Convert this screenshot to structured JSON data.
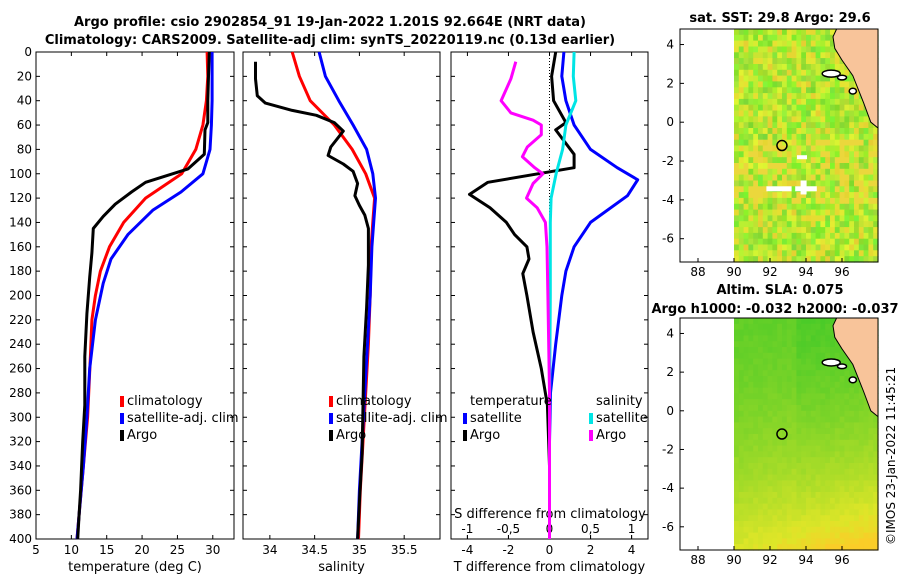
{
  "title_line1": "Argo profile: csio 2902854_91 19-Jan-2022 1.201S 92.664E (NRT data)",
  "title_line2": "Climatology: CARS2009. Satellite-adj clim: synTS_20220119.nc (0.13d earlier)",
  "timestamp_label": "©IMOS 23-Jan-2022 11:45:21",
  "colors": {
    "climatology": "#ff0000",
    "satellite": "#0000ff",
    "argo": "#000000",
    "sal_satellite": "#00e5e5",
    "sal_argo": "#ff00ff"
  },
  "depth_axis": {
    "ticks": [
      0,
      20,
      40,
      60,
      80,
      100,
      120,
      140,
      160,
      180,
      200,
      220,
      240,
      260,
      280,
      300,
      320,
      340,
      360,
      380,
      400
    ],
    "range": [
      0,
      400
    ]
  },
  "chart_data": [
    {
      "type": "line",
      "id": "temperature",
      "xlabel": "temperature (deg C)",
      "ylabel": "",
      "xlim": [
        5,
        33
      ],
      "ylim": [
        0,
        400
      ],
      "xticks": [
        5,
        10,
        15,
        20,
        25,
        30
      ],
      "legend": [
        "climatology",
        "satellite-adj. clim",
        "Argo"
      ],
      "series": [
        {
          "name": "climatology",
          "color": "#ff0000",
          "points": [
            [
              29.2,
              0
            ],
            [
              29.3,
              20
            ],
            [
              29.1,
              40
            ],
            [
              28.6,
              60
            ],
            [
              27.6,
              80
            ],
            [
              25.6,
              100
            ],
            [
              20.5,
              120
            ],
            [
              17.4,
              140
            ],
            [
              15.4,
              160
            ],
            [
              14.1,
              180
            ],
            [
              13.4,
              200
            ],
            [
              12.9,
              220
            ],
            [
              12.7,
              250
            ],
            [
              12.3,
              300
            ],
            [
              11.7,
              340
            ],
            [
              11.1,
              380
            ],
            [
              10.8,
              400
            ]
          ]
        },
        {
          "name": "satellite-adj. clim",
          "color": "#0000ff",
          "points": [
            [
              29.9,
              0
            ],
            [
              29.9,
              20
            ],
            [
              29.9,
              40
            ],
            [
              29.8,
              60
            ],
            [
              29.6,
              80
            ],
            [
              28.6,
              100
            ],
            [
              25.5,
              115
            ],
            [
              21.5,
              130
            ],
            [
              18.0,
              150
            ],
            [
              15.6,
              170
            ],
            [
              14.5,
              190
            ],
            [
              13.4,
              220
            ],
            [
              12.6,
              260
            ],
            [
              12.2,
              300
            ],
            [
              11.7,
              340
            ],
            [
              11.1,
              380
            ],
            [
              10.8,
              400
            ]
          ]
        },
        {
          "name": "Argo",
          "color": "#000000",
          "points": [
            [
              29.5,
              0
            ],
            [
              29.4,
              20
            ],
            [
              29.3,
              40
            ],
            [
              29.3,
              58
            ],
            [
              28.9,
              64
            ],
            [
              28.8,
              84
            ],
            [
              26.5,
              96
            ],
            [
              20.5,
              107
            ],
            [
              18.5,
              115
            ],
            [
              16.2,
              125
            ],
            [
              14.5,
              135
            ],
            [
              13.1,
              145
            ],
            [
              12.9,
              165
            ],
            [
              12.6,
              185
            ],
            [
              12.2,
              215
            ],
            [
              11.9,
              250
            ],
            [
              11.9,
              290
            ],
            [
              11.6,
              320
            ],
            [
              11.3,
              360
            ],
            [
              11.1,
              380
            ],
            [
              10.9,
              400
            ]
          ]
        }
      ]
    },
    {
      "type": "line",
      "id": "salinity",
      "xlabel": "salinity",
      "ylabel": "",
      "xlim": [
        33.7,
        35.9
      ],
      "ylim": [
        0,
        400
      ],
      "xticks": [
        34,
        34.5,
        35,
        35.5
      ],
      "xticklabels": [
        "34",
        "34.5",
        "35",
        "35.5"
      ],
      "legend": [
        "climatology",
        "satellite-adj. clim",
        "Argo"
      ],
      "series": [
        {
          "name": "climatology",
          "color": "#ff0000",
          "points": [
            [
              34.25,
              0
            ],
            [
              34.33,
              20
            ],
            [
              34.45,
              40
            ],
            [
              34.72,
              60
            ],
            [
              34.92,
              80
            ],
            [
              35.07,
              100
            ],
            [
              35.17,
              120
            ],
            [
              35.15,
              140
            ],
            [
              35.13,
              160
            ],
            [
              35.12,
              200
            ],
            [
              35.1,
              240
            ],
            [
              35.07,
              280
            ],
            [
              35.04,
              320
            ],
            [
              35.01,
              360
            ],
            [
              34.99,
              400
            ]
          ]
        },
        {
          "name": "satellite-adj. clim",
          "color": "#0000ff",
          "points": [
            [
              34.55,
              0
            ],
            [
              34.62,
              20
            ],
            [
              34.77,
              40
            ],
            [
              34.93,
              60
            ],
            [
              35.08,
              80
            ],
            [
              35.15,
              100
            ],
            [
              35.18,
              120
            ],
            [
              35.16,
              140
            ],
            [
              35.14,
              160
            ],
            [
              35.12,
              200
            ],
            [
              35.09,
              240
            ],
            [
              35.06,
              280
            ],
            [
              35.03,
              320
            ],
            [
              35.0,
              360
            ],
            [
              34.98,
              400
            ]
          ]
        },
        {
          "name": "Argo",
          "color": "#000000",
          "points": [
            [
              33.84,
              8
            ],
            [
              33.84,
              22
            ],
            [
              33.86,
              36
            ],
            [
              33.95,
              42
            ],
            [
              34.25,
              48
            ],
            [
              34.52,
              52
            ],
            [
              34.72,
              58
            ],
            [
              34.82,
              65
            ],
            [
              34.68,
              78
            ],
            [
              34.65,
              85
            ],
            [
              34.82,
              92
            ],
            [
              34.93,
              98
            ],
            [
              34.98,
              108
            ],
            [
              34.95,
              118
            ],
            [
              35.0,
              126
            ],
            [
              35.06,
              134
            ],
            [
              35.1,
              145
            ],
            [
              35.1,
              175
            ],
            [
              35.08,
              210
            ],
            [
              35.05,
              250
            ],
            [
              35.04,
              290
            ],
            [
              35.03,
              330
            ],
            [
              35.0,
              370
            ],
            [
              34.98,
              400
            ]
          ]
        }
      ]
    },
    {
      "type": "line",
      "id": "difference",
      "xlabel": "T difference from climatology",
      "x2label": "S difference from climatology",
      "xlim": [
        -4.8,
        4.8
      ],
      "ylim": [
        0,
        400
      ],
      "xticks": [
        -4,
        -2,
        0,
        2,
        4
      ],
      "x2lim": [
        -1.2,
        1.2
      ],
      "x2ticks": [
        -1,
        -0.5,
        0,
        0.5,
        1
      ],
      "x2ticklabels": [
        "-1",
        "-0,5",
        "0",
        "0,5",
        "1"
      ],
      "legend": [
        "temperature",
        "satellite",
        "Argo",
        "salinity",
        "satellite",
        "Argo"
      ],
      "series": [
        {
          "name": "T satellite",
          "color": "#0000ff",
          "axis": "T",
          "points": [
            [
              0.7,
              0
            ],
            [
              0.6,
              20
            ],
            [
              0.8,
              40
            ],
            [
              1.2,
              60
            ],
            [
              2.0,
              80
            ],
            [
              3.3,
              95
            ],
            [
              4.3,
              105
            ],
            [
              3.8,
              118
            ],
            [
              2.0,
              140
            ],
            [
              1.2,
              160
            ],
            [
              0.8,
              180
            ],
            [
              0.6,
              200
            ],
            [
              0.3,
              240
            ],
            [
              0.05,
              280
            ],
            [
              0,
              320
            ],
            [
              0,
              360
            ],
            [
              0,
              400
            ]
          ]
        },
        {
          "name": "T Argo",
          "color": "#000000",
          "axis": "T",
          "points": [
            [
              0.3,
              0
            ],
            [
              0.1,
              20
            ],
            [
              0.2,
              40
            ],
            [
              0.8,
              58
            ],
            [
              0.3,
              64
            ],
            [
              1.2,
              84
            ],
            [
              1.2,
              95
            ],
            [
              -3.0,
              107
            ],
            [
              -3.9,
              117
            ],
            [
              -2.9,
              128
            ],
            [
              -2.1,
              140
            ],
            [
              -1.7,
              150
            ],
            [
              -1.1,
              160
            ],
            [
              -1.0,
              170
            ],
            [
              -1.3,
              182
            ],
            [
              -1.1,
              200
            ],
            [
              -0.8,
              230
            ],
            [
              -0.4,
              260
            ],
            [
              -0.1,
              290
            ],
            [
              0,
              340
            ],
            [
              0,
              400
            ]
          ]
        },
        {
          "name": "S satellite",
          "color": "#00e5e5",
          "axis": "S",
          "points": [
            [
              0.3,
              0
            ],
            [
              0.29,
              20
            ],
            [
              0.32,
              40
            ],
            [
              0.2,
              60
            ],
            [
              0.16,
              80
            ],
            [
              0.08,
              100
            ],
            [
              0.02,
              120
            ],
            [
              0.01,
              140
            ],
            [
              0.01,
              200
            ],
            [
              0.0,
              300
            ],
            [
              0.0,
              400
            ]
          ]
        },
        {
          "name": "S Argo",
          "color": "#ff00ff",
          "axis": "S",
          "points": [
            [
              -0.41,
              8
            ],
            [
              -0.47,
              22
            ],
            [
              -0.59,
              40
            ],
            [
              -0.47,
              50
            ],
            [
              -0.2,
              56
            ],
            [
              -0.1,
              60
            ],
            [
              -0.1,
              68
            ],
            [
              -0.27,
              78
            ],
            [
              -0.33,
              86
            ],
            [
              -0.18,
              95
            ],
            [
              -0.08,
              100
            ],
            [
              -0.2,
              108
            ],
            [
              -0.28,
              120
            ],
            [
              -0.15,
              128
            ],
            [
              -0.05,
              140
            ],
            [
              -0.03,
              160
            ],
            [
              -0.02,
              200
            ],
            [
              0.0,
              280
            ],
            [
              0.0,
              400
            ]
          ]
        }
      ]
    },
    {
      "type": "heatmap",
      "id": "sst_map",
      "title": "sat. SST: 29.8 Argo: 29.6",
      "xlim": [
        87,
        98
      ],
      "ylim": [
        -7.2,
        4.8
      ],
      "xticks": [
        88,
        90,
        92,
        94,
        96
      ],
      "yticks": [
        -6,
        -4,
        -2,
        0,
        2,
        4
      ],
      "argo_position": [
        92.664,
        -1.201
      ]
    },
    {
      "type": "heatmap",
      "id": "sla_map",
      "title_line1": "Altim. SLA: 0.075",
      "title_line2": "Argo h1000: -0.032 h2000: -0.037",
      "xlim": [
        87,
        98
      ],
      "ylim": [
        -7.2,
        4.8
      ],
      "xticks": [
        88,
        90,
        92,
        94,
        96
      ],
      "yticks": [
        -6,
        -4,
        -2,
        0,
        2,
        4
      ],
      "argo_position": [
        92.664,
        -1.201
      ]
    }
  ]
}
